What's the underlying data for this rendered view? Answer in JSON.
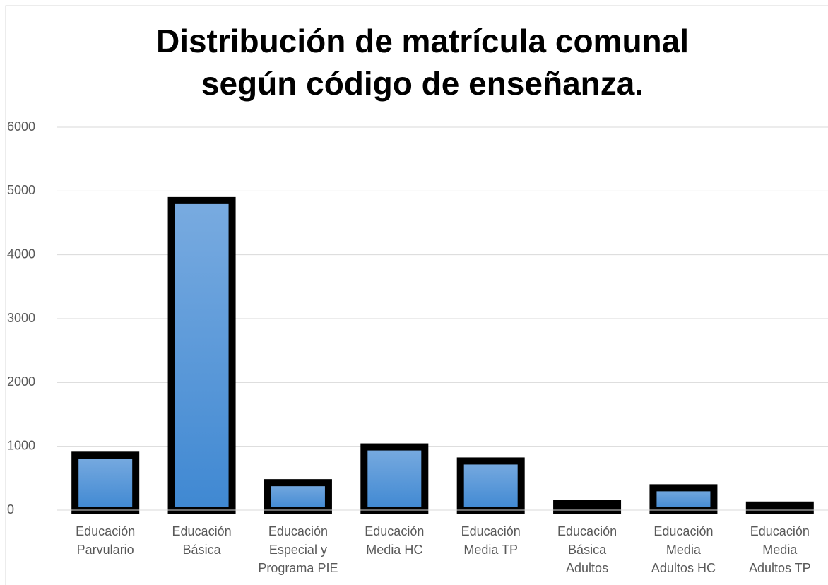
{
  "chart_data": {
    "type": "bar",
    "title": [
      "Distribución de matrícula comunal",
      "según código de enseñanza."
    ],
    "categories": [
      "Educación\nParvulario",
      "Educación\nBásica",
      "Educación\nEspecial y\nPrograma PIE",
      "Educación\nMedia HC",
      "Educación\nMedia TP",
      "Educación\nBásica\nAdultos",
      "Educación\nMedia\nAdultos HC",
      "Educación\nMedia\nAdultos TP"
    ],
    "values": [
      860,
      4850,
      430,
      990,
      770,
      100,
      350,
      80
    ],
    "color": "#4a8fd6",
    "border_color": "#000000",
    "ylim": [
      0,
      6000
    ],
    "yticks": [
      0,
      1000,
      2000,
      3000,
      4000,
      5000,
      6000
    ],
    "grid": true
  }
}
